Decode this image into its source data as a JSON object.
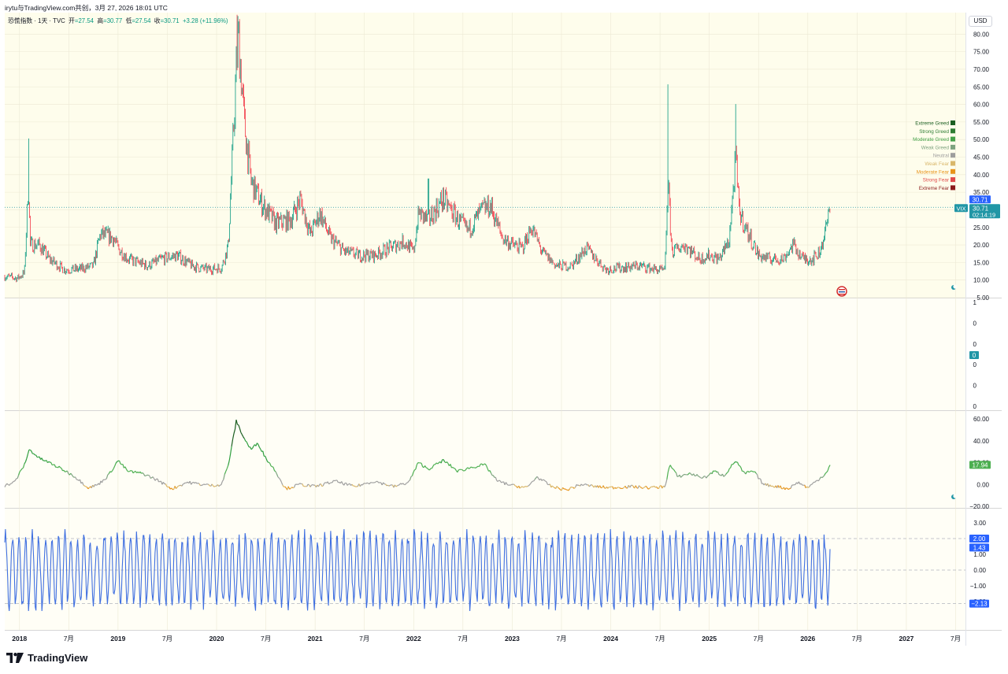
{
  "header": {
    "shared_by": "irytu与TradingView.com共创，3月 27, 2026 18:01 UTC",
    "currency": "USD"
  },
  "legend": {
    "symbol": "恐慌指数 · 1天 · TVC",
    "open_label": "开",
    "open": "=27.54",
    "high_label": "高",
    "high": "=30.77",
    "low_label": "低",
    "low": "=27.54",
    "close_label": "收",
    "close": "=30.71",
    "change": "+3.28 (+11.96%)"
  },
  "footer": {
    "brand": "TradingView"
  },
  "colors": {
    "up": "#089981",
    "down": "#f23645",
    "pane_bg": "#fefdec",
    "grid": "#ece9d4",
    "blue_line": "#3f6fe0",
    "teal_badge": "#2196a6",
    "green_badge": "#4caf50",
    "blue_badge": "#2962ff"
  },
  "chart_data": [
    {
      "type": "candlestick",
      "pane": "main",
      "symbol": "VIX",
      "ylim": [
        5,
        85
      ],
      "y_ticks": [
        "80.00",
        "75.00",
        "70.00",
        "65.00",
        "60.00",
        "55.00",
        "50.00",
        "45.00",
        "40.00",
        "35.00",
        "30.00",
        "25.00",
        "20.00",
        "15.00",
        "10.00",
        "5.00"
      ],
      "x_range": [
        2017.85,
        2027.6
      ],
      "x_ticks": [
        {
          "label": "2018",
          "x": 2018.0,
          "bold": true
        },
        {
          "label": "7月",
          "x": 2018.5
        },
        {
          "label": "2019",
          "x": 2019.0,
          "bold": true
        },
        {
          "label": "7月",
          "x": 2019.5
        },
        {
          "label": "2020",
          "x": 2020.0,
          "bold": true
        },
        {
          "label": "7月",
          "x": 2020.5
        },
        {
          "label": "2021",
          "x": 2021.0,
          "bold": true
        },
        {
          "label": "7月",
          "x": 2021.5
        },
        {
          "label": "2022",
          "x": 2022.0,
          "bold": true
        },
        {
          "label": "7月",
          "x": 2022.5
        },
        {
          "label": "2023",
          "x": 2023.0,
          "bold": true
        },
        {
          "label": "7月",
          "x": 2023.5
        },
        {
          "label": "2024",
          "x": 2024.0,
          "bold": true
        },
        {
          "label": "7月",
          "x": 2024.5
        },
        {
          "label": "2025",
          "x": 2025.0,
          "bold": true
        },
        {
          "label": "7月",
          "x": 2025.5
        },
        {
          "label": "2026",
          "x": 2026.0,
          "bold": true
        },
        {
          "label": "7月",
          "x": 2026.5
        },
        {
          "label": "2027",
          "x": 2027.0,
          "bold": true
        },
        {
          "label": "7月",
          "x": 2027.5
        }
      ],
      "key_points": [
        [
          2017.85,
          11
        ],
        [
          2017.98,
          10.5
        ],
        [
          2018.05,
          12
        ],
        [
          2018.09,
          38
        ],
        [
          2018.11,
          20
        ],
        [
          2018.2,
          20
        ],
        [
          2018.3,
          16
        ],
        [
          2018.45,
          13
        ],
        [
          2018.6,
          13
        ],
        [
          2018.75,
          14
        ],
        [
          2018.82,
          23
        ],
        [
          2018.95,
          22
        ],
        [
          2019.0,
          19
        ],
        [
          2019.1,
          16
        ],
        [
          2019.3,
          14
        ],
        [
          2019.45,
          16
        ],
        [
          2019.6,
          17
        ],
        [
          2019.75,
          14
        ],
        [
          2019.9,
          13
        ],
        [
          2020.05,
          13.5
        ],
        [
          2020.12,
          20
        ],
        [
          2020.2,
          70
        ],
        [
          2020.22,
          80
        ],
        [
          2020.28,
          55
        ],
        [
          2020.35,
          38
        ],
        [
          2020.45,
          32
        ],
        [
          2020.6,
          26
        ],
        [
          2020.75,
          27
        ],
        [
          2020.85,
          33
        ],
        [
          2020.95,
          23
        ],
        [
          2021.05,
          29
        ],
        [
          2021.15,
          22
        ],
        [
          2021.3,
          18
        ],
        [
          2021.45,
          17
        ],
        [
          2021.6,
          17
        ],
        [
          2021.75,
          19
        ],
        [
          2021.9,
          21
        ],
        [
          2022.0,
          18
        ],
        [
          2022.05,
          29
        ],
        [
          2022.15,
          27
        ],
        [
          2022.3,
          33
        ],
        [
          2022.45,
          27
        ],
        [
          2022.55,
          24
        ],
        [
          2022.7,
          30
        ],
        [
          2022.78,
          31
        ],
        [
          2022.9,
          22
        ],
        [
          2023.0,
          20
        ],
        [
          2023.1,
          19
        ],
        [
          2023.2,
          25
        ],
        [
          2023.3,
          18
        ],
        [
          2023.45,
          14
        ],
        [
          2023.6,
          14
        ],
        [
          2023.75,
          19
        ],
        [
          2023.85,
          16
        ],
        [
          2023.95,
          13
        ],
        [
          2024.1,
          13.5
        ],
        [
          2024.3,
          14
        ],
        [
          2024.45,
          13
        ],
        [
          2024.55,
          12.5
        ],
        [
          2024.58,
          38
        ],
        [
          2024.62,
          18
        ],
        [
          2024.75,
          20
        ],
        [
          2024.9,
          16
        ],
        [
          2025.0,
          17
        ],
        [
          2025.1,
          16
        ],
        [
          2025.2,
          21
        ],
        [
          2025.27,
          45
        ],
        [
          2025.3,
          30
        ],
        [
          2025.38,
          24
        ],
        [
          2025.5,
          17
        ],
        [
          2025.6,
          16
        ],
        [
          2025.75,
          16
        ],
        [
          2025.85,
          20
        ],
        [
          2025.95,
          16
        ],
        [
          2026.05,
          16
        ],
        [
          2026.12,
          18
        ],
        [
          2026.18,
          24
        ],
        [
          2026.23,
          30.7
        ]
      ],
      "spikes": [
        [
          2018.09,
          50.3
        ],
        [
          2020.21,
          85.5
        ],
        [
          2024.58,
          65.7
        ],
        [
          2025.27,
          60.1
        ],
        [
          2022.15,
          38.9
        ]
      ],
      "last_value": 30.71,
      "last_label": "VIX",
      "last_value_text": "30.71",
      "tag_value_text": "30.71",
      "countdown": "02:14:19"
    },
    {
      "type": "line",
      "pane": "indicator",
      "ylim": [
        -20,
        60
      ],
      "y_ticks": [
        "60.00",
        "40.00",
        "20.00",
        "0.00",
        "−20.00"
      ],
      "last_value": 17.94,
      "last_value_text": "17.94",
      "key_points": [
        [
          2017.85,
          -1
        ],
        [
          2017.95,
          2
        ],
        [
          2018.05,
          18
        ],
        [
          2018.1,
          32
        ],
        [
          2018.2,
          24
        ],
        [
          2018.3,
          20
        ],
        [
          2018.45,
          13
        ],
        [
          2018.55,
          8
        ],
        [
          2018.7,
          -3
        ],
        [
          2018.8,
          0
        ],
        [
          2018.9,
          8
        ],
        [
          2019.0,
          22
        ],
        [
          2019.1,
          12
        ],
        [
          2019.25,
          10
        ],
        [
          2019.4,
          4
        ],
        [
          2019.55,
          -4
        ],
        [
          2019.7,
          2
        ],
        [
          2019.85,
          0
        ],
        [
          2019.95,
          -1
        ],
        [
          2020.05,
          0
        ],
        [
          2020.12,
          18
        ],
        [
          2020.2,
          58
        ],
        [
          2020.28,
          42
        ],
        [
          2020.35,
          32
        ],
        [
          2020.42,
          38
        ],
        [
          2020.5,
          24
        ],
        [
          2020.6,
          12
        ],
        [
          2020.7,
          -4
        ],
        [
          2020.85,
          0
        ],
        [
          2021.0,
          -2
        ],
        [
          2021.2,
          3
        ],
        [
          2021.4,
          -2
        ],
        [
          2021.6,
          3
        ],
        [
          2021.8,
          -2
        ],
        [
          2021.95,
          2
        ],
        [
          2022.05,
          20
        ],
        [
          2022.15,
          14
        ],
        [
          2022.3,
          22
        ],
        [
          2022.45,
          12
        ],
        [
          2022.6,
          16
        ],
        [
          2022.72,
          18
        ],
        [
          2022.85,
          3
        ],
        [
          2023.0,
          -1
        ],
        [
          2023.15,
          -3
        ],
        [
          2023.25,
          7
        ],
        [
          2023.4,
          -2
        ],
        [
          2023.55,
          -5
        ],
        [
          2023.7,
          0
        ],
        [
          2023.85,
          -2
        ],
        [
          2024.0,
          -3
        ],
        [
          2024.2,
          -2
        ],
        [
          2024.4,
          -3
        ],
        [
          2024.55,
          -2
        ],
        [
          2024.6,
          18
        ],
        [
          2024.68,
          7
        ],
        [
          2024.8,
          10
        ],
        [
          2024.95,
          6
        ],
        [
          2025.05,
          12
        ],
        [
          2025.15,
          8
        ],
        [
          2025.27,
          22
        ],
        [
          2025.35,
          10
        ],
        [
          2025.45,
          12
        ],
        [
          2025.55,
          0
        ],
        [
          2025.7,
          -2
        ],
        [
          2025.8,
          -4
        ],
        [
          2025.9,
          2
        ],
        [
          2026.0,
          -3
        ],
        [
          2026.1,
          4
        ],
        [
          2026.18,
          10
        ],
        [
          2026.23,
          17.94
        ]
      ],
      "color_bands": [
        "#8b1a1a",
        "#e04a4a",
        "#e8941a",
        "#d9b76a",
        "#9e9e9e",
        "#7da37f",
        "#4caf50",
        "#2e9e3e",
        "#1b5e20"
      ]
    },
    {
      "type": "line",
      "pane": "oscillator",
      "ylim": [
        -3.5,
        3.5
      ],
      "y_ticks": [
        "3.00",
        "2.00",
        "1.00",
        "0.00",
        "−1.00",
        "−2.00"
      ],
      "levels": [
        2.0,
        0.0,
        -2.13
      ],
      "badges": [
        {
          "text": "2.00",
          "value": 2.0
        },
        {
          "text": "1.43",
          "value": 1.43
        },
        {
          "text": "−2.13",
          "value": -2.13
        }
      ]
    },
    {
      "type": "empty",
      "pane": "zero",
      "y_ticks": [
        "1",
        "0",
        "0",
        "0",
        "0",
        "0"
      ],
      "badge": "0"
    }
  ],
  "sentiment_legend": [
    {
      "label": "Extreme Greed",
      "color": "#1b5e20"
    },
    {
      "label": "Strong Greed",
      "color": "#2e7d32"
    },
    {
      "label": "Moderate Greed",
      "color": "#43a047"
    },
    {
      "label": "Weak Greed",
      "color": "#7da37f"
    },
    {
      "label": "Neutral",
      "color": "#9e9e9e"
    },
    {
      "label": "Weak Fear",
      "color": "#d9b76a"
    },
    {
      "label": "Moderate Fear",
      "color": "#e8941a"
    },
    {
      "label": "Strong Fear",
      "color": "#e04a4a"
    },
    {
      "label": "Extreme Fear",
      "color": "#8b1a1a"
    }
  ]
}
